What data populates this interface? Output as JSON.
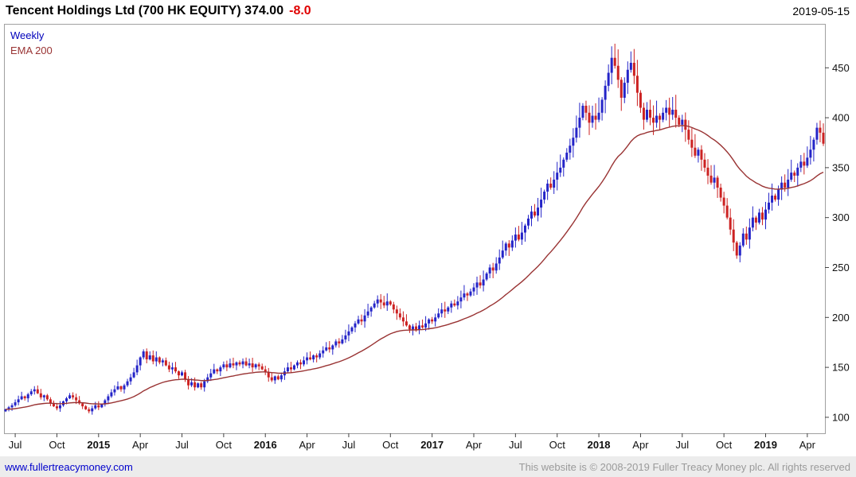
{
  "header": {
    "title": "Tencent Holdings Ltd (700 HK EQUITY) 374.00",
    "change": "-8.0",
    "date": "2019-05-15"
  },
  "legend": {
    "weekly": "Weekly",
    "ema": "EMA 200"
  },
  "colors": {
    "up": "#2424c8",
    "down": "#cc2222",
    "ema": "#993333",
    "border": "#a0a0a0",
    "tick": "#444444",
    "axis_text": "#111111",
    "change_text": "#e00000"
  },
  "footer": {
    "left": "www.fullertreacymoney.com",
    "right": "This website is © 2008-2019 Fuller Treacy Money plc. All rights reserved"
  },
  "chart_data": {
    "type": "candlestick",
    "instrument": "Tencent Holdings Ltd (700 HK EQUITY)",
    "interval": "Weekly",
    "overlay": "EMA 200",
    "last_price": 374.0,
    "change": -8.0,
    "as_of": "2019-05-15",
    "grid": false,
    "ylabel_ticks": [
      100,
      150,
      200,
      250,
      300,
      350,
      400,
      450
    ],
    "ylim": [
      84,
      494
    ],
    "x_tick_labels": [
      "Jul",
      "Oct",
      "2015",
      "Apr",
      "Jul",
      "Oct",
      "2016",
      "Apr",
      "Jul",
      "Oct",
      "2017",
      "Apr",
      "Jul",
      "Oct",
      "2018",
      "Apr",
      "Jul",
      "Oct",
      "2019",
      "Apr"
    ],
    "x_tick_weeks": [
      3,
      16,
      29,
      42,
      55,
      68,
      81,
      94,
      107,
      120,
      133,
      146,
      159,
      172,
      185,
      198,
      211,
      224,
      237,
      250
    ],
    "ema_period_weeks": 38,
    "closes": [
      108,
      110,
      112,
      115,
      118,
      121,
      119,
      123,
      126,
      128,
      124,
      120,
      122,
      118,
      114,
      111,
      109,
      112,
      116,
      119,
      122,
      120,
      117,
      114,
      111,
      108,
      106,
      109,
      112,
      110,
      113,
      117,
      121,
      125,
      128,
      131,
      128,
      132,
      136,
      140,
      145,
      152,
      160,
      166,
      158,
      162,
      156,
      160,
      155,
      157,
      152,
      148,
      150,
      146,
      142,
      145,
      138,
      132,
      135,
      130,
      134,
      130,
      136,
      140,
      144,
      148,
      146,
      150,
      153,
      150,
      154,
      152,
      155,
      153,
      156,
      152,
      154,
      150,
      153,
      151,
      148,
      145,
      140,
      137,
      141,
      138,
      142,
      146,
      150,
      148,
      152,
      155,
      153,
      157,
      160,
      158,
      162,
      160,
      164,
      167,
      170,
      168,
      172,
      176,
      174,
      178,
      182,
      186,
      190,
      194,
      198,
      196,
      202,
      206,
      210,
      214,
      218,
      215,
      212,
      216,
      213,
      208,
      204,
      200,
      196,
      192,
      188,
      191,
      188,
      192,
      190,
      194,
      198,
      196,
      200,
      204,
      208,
      206,
      210,
      214,
      212,
      216,
      220,
      224,
      222,
      226,
      230,
      235,
      232,
      238,
      244,
      250,
      247,
      254,
      260,
      267,
      274,
      270,
      277,
      283,
      278,
      285,
      292,
      299,
      306,
      302,
      310,
      318,
      326,
      334,
      330,
      338,
      345,
      350,
      358,
      365,
      372,
      380,
      390,
      400,
      412,
      405,
      395,
      402,
      398,
      405,
      418,
      432,
      445,
      460,
      452,
      438,
      420,
      435,
      448,
      455,
      442,
      425,
      410,
      398,
      408,
      400,
      395,
      402,
      398,
      405,
      410,
      403,
      408,
      400,
      393,
      398,
      388,
      378,
      370,
      362,
      368,
      358,
      350,
      342,
      335,
      340,
      330,
      320,
      312,
      300,
      288,
      275,
      262,
      272,
      284,
      278,
      290,
      300,
      295,
      305,
      298,
      308,
      315,
      322,
      318,
      328,
      335,
      330,
      338,
      345,
      342,
      350,
      356,
      352,
      360,
      368,
      378,
      390,
      385,
      374
    ]
  }
}
